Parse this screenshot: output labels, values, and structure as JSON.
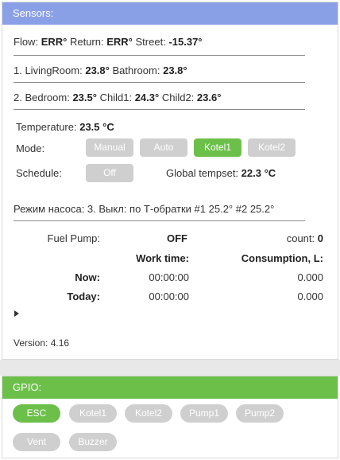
{
  "sensors": {
    "header": "Sensors:",
    "row1": {
      "flow_label": "Flow:",
      "flow_value": "ERR°",
      "return_label": "Return:",
      "return_value": "ERR°",
      "street_label": "Street:",
      "street_value": "-15.37°"
    },
    "row2": {
      "prefix": "1. LivingRoom:",
      "living_value": "23.8°",
      "bath_label": "Bathroom:",
      "bath_value": "23.8°"
    },
    "row3": {
      "prefix": "2. Bedroom:",
      "bed_value": "23.5°",
      "child1_label": "Child1:",
      "child1_value": "24.3°",
      "child2_label": "Child2:",
      "child2_value": "23.6°"
    }
  },
  "control": {
    "temperature_label": "Temperature:",
    "temperature_value": "23.5 °C",
    "mode_label": "Mode:",
    "modes": [
      {
        "label": "Manual",
        "active": false
      },
      {
        "label": "Auto",
        "active": false
      },
      {
        "label": "Kotel1",
        "active": true
      },
      {
        "label": "Kotel2",
        "active": false
      }
    ],
    "schedule_label": "Schedule:",
    "schedule_button": "Off",
    "global_label": "Global tempset:",
    "global_value": "22.3 °C"
  },
  "pump_mode": "Режим насоса: 3. Выкл: по Т-обратки #1 25.2° #2 25.2°",
  "fuel": {
    "pump_label": "Fuel Pump:",
    "pump_state": "OFF",
    "count_label": "count:",
    "count_value": "0",
    "work_time_header": "Work time:",
    "consumption_header": "Consumption, L:",
    "rows": [
      {
        "label": "Now:",
        "time": "00:00:00",
        "consumption": "0.000"
      },
      {
        "label": "Today:",
        "time": "00:00:00",
        "consumption": "0.000"
      }
    ]
  },
  "version": "Version: 4.16",
  "gpio": {
    "header": "GPIO:",
    "buttons": [
      {
        "label": "ESC",
        "active": true
      },
      {
        "label": "Kotel1",
        "active": false
      },
      {
        "label": "Kotel2",
        "active": false
      },
      {
        "label": "Pump1",
        "active": false
      },
      {
        "label": "Pump2",
        "active": false
      },
      {
        "label": "Vent",
        "active": false
      },
      {
        "label": "Buzzer",
        "active": false
      }
    ]
  },
  "colors": {
    "sensors_header": "#8aa0e6",
    "gpio_header": "#6cc04a",
    "active_button": "#6cc04a",
    "inactive_button": "#cfcfcf"
  }
}
